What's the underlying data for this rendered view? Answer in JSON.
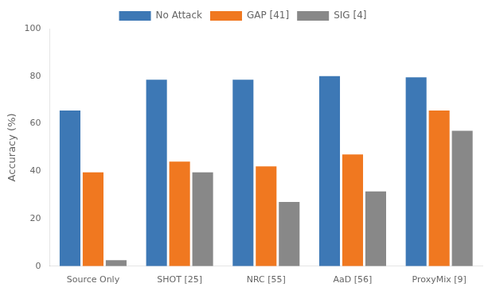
{
  "chart_data": {
    "type": "bar",
    "categories": [
      "Source Only",
      "SHOT [25]",
      "NRC [55]",
      "AaD [56]",
      "ProxyMix [9]"
    ],
    "series": [
      {
        "name": "No Attack",
        "color": "#3D78B5",
        "values": [
          65.5,
          78.5,
          78.5,
          80.0,
          79.5
        ]
      },
      {
        "name": "GAP [41]",
        "color": "#F07820",
        "values": [
          39.5,
          44.0,
          42.0,
          47.0,
          65.5
        ]
      },
      {
        "name": "SIG [4]",
        "color": "#888888",
        "values": [
          2.5,
          39.5,
          27.0,
          31.5,
          57.0
        ]
      }
    ],
    "ylabel": "Accuracy (%)",
    "ylim": [
      0,
      100
    ],
    "yticks": [
      0,
      20,
      40,
      60,
      80,
      100
    ],
    "grid": false,
    "legend": "top"
  }
}
